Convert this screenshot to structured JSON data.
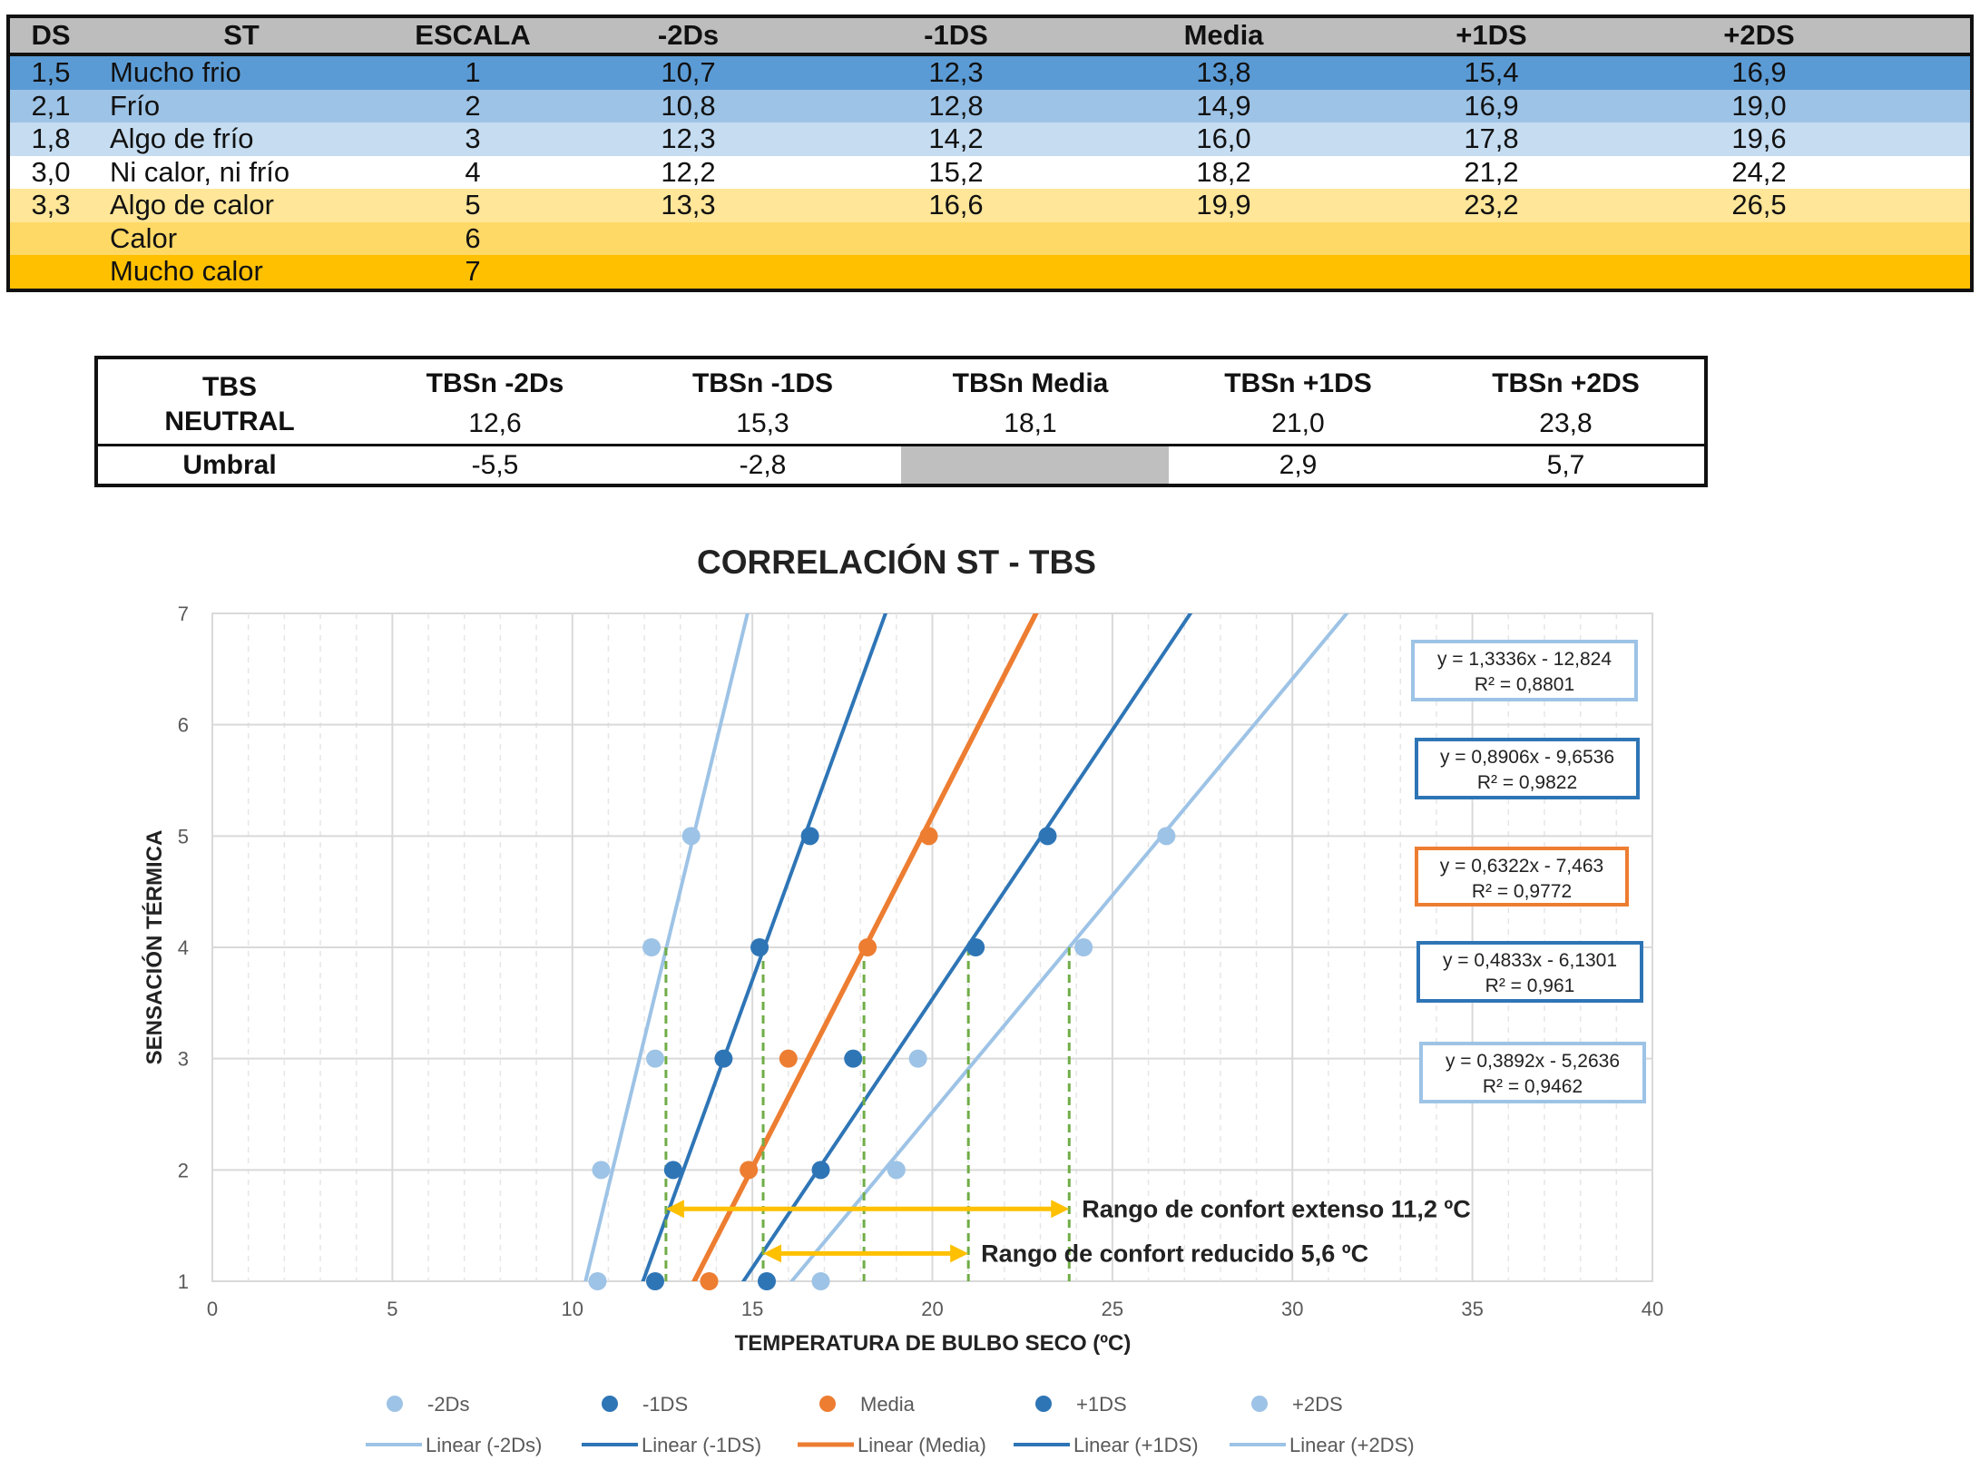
{
  "table1": {
    "headers": [
      "DS",
      "ST",
      "ESCALA",
      "-2Ds",
      "-1DS",
      "Media",
      "+1DS",
      "+2DS"
    ],
    "rows": [
      {
        "ds": "1,5",
        "st": "Mucho frio",
        "escala": "1",
        "values": [
          "10,7",
          "12,3",
          "13,8",
          "15,4",
          "16,9"
        ],
        "bg": "#5b9bd5"
      },
      {
        "ds": "2,1",
        "st": "Frío",
        "escala": "2",
        "values": [
          "10,8",
          "12,8",
          "14,9",
          "16,9",
          "19,0"
        ],
        "bg": "#9dc3e6"
      },
      {
        "ds": "1,8",
        "st": "Algo de frío",
        "escala": "3",
        "values": [
          "12,3",
          "14,2",
          "16,0",
          "17,8",
          "19,6"
        ],
        "bg": "#c5dcf1"
      },
      {
        "ds": "3,0",
        "st": "Ni calor, ni frío",
        "escala": "4",
        "values": [
          "12,2",
          "15,2",
          "18,2",
          "21,2",
          "24,2"
        ],
        "bg": "#ffffff"
      },
      {
        "ds": "3,3",
        "st": "Algo de calor",
        "escala": "5",
        "values": [
          "13,3",
          "16,6",
          "19,9",
          "23,2",
          "26,5"
        ],
        "bg": "#ffe699"
      },
      {
        "ds": "",
        "st": "Calor",
        "escala": "6",
        "values": [
          "",
          "",
          "",
          "",
          ""
        ],
        "bg": "#ffd966"
      },
      {
        "ds": "",
        "st": "Mucho calor",
        "escala": "7",
        "values": [
          "",
          "",
          "",
          "",
          ""
        ],
        "bg": "#ffc000"
      }
    ]
  },
  "table2": {
    "label_line1": "TBS",
    "label_line2": "NEUTRAL",
    "headers": [
      "TBSn -2Ds",
      "TBSn -1DS",
      "TBSn Media",
      "TBSn +1DS",
      "TBSn +2DS"
    ],
    "neutral_values": [
      "12,6",
      "15,3",
      "18,1",
      "21,0",
      "23,8"
    ],
    "umbral_label": "Umbral",
    "umbral_values": [
      "-5,5",
      "-2,8",
      "",
      "2,9",
      "5,7"
    ]
  },
  "chart_data": {
    "type": "scatter",
    "title": "CORRELACIÓN ST - TBS",
    "xlabel": "TEMPERATURA DE BULBO SECO (ºC)",
    "ylabel": "SENSACIÓN TÉRMICA",
    "xlim": [
      0,
      40
    ],
    "ylim": [
      1,
      7
    ],
    "x_ticks": [
      "0",
      "5",
      "10",
      "15",
      "20",
      "25",
      "30",
      "35",
      "40"
    ],
    "y_ticks": [
      "1",
      "2",
      "3",
      "4",
      "5",
      "6",
      "7"
    ],
    "grid": true,
    "series": [
      {
        "name": "-2Ds",
        "color": "#9dc3e6",
        "x": [
          10.7,
          10.8,
          12.3,
          12.2,
          13.3
        ],
        "y": [
          1,
          2,
          3,
          4,
          5
        ],
        "trend_label": "Linear (-2Ds)",
        "slope": 1.3336,
        "intercept": -12.824,
        "equation": "y = 1,3336x - 12,824",
        "r2": "R² = 0,8801"
      },
      {
        "name": "-1DS",
        "color": "#2e75b6",
        "x": [
          12.3,
          12.8,
          14.2,
          15.2,
          16.6
        ],
        "y": [
          1,
          2,
          3,
          4,
          5
        ],
        "trend_label": "Linear (-1DS)",
        "slope": 0.8906,
        "intercept": -9.6536,
        "equation": "y = 0,8906x - 9,6536",
        "r2": "R² = 0,9822"
      },
      {
        "name": "Media",
        "color": "#ed7d31",
        "x": [
          13.8,
          14.9,
          16.0,
          18.2,
          19.9
        ],
        "y": [
          1,
          2,
          3,
          4,
          5
        ],
        "trend_label": "Linear (Media)",
        "slope": 0.6322,
        "intercept": -7.463,
        "equation": "y = 0,6322x - 7,463",
        "r2": "R² = 0,9772"
      },
      {
        "name": "+1DS",
        "color": "#2e75b6",
        "x": [
          15.4,
          16.9,
          17.8,
          21.2,
          23.2
        ],
        "y": [
          1,
          2,
          3,
          4,
          5
        ],
        "trend_label": "Linear (+1DS)",
        "slope": 0.4833,
        "intercept": -6.1301,
        "equation": "y = 0,4833x - 6,1301",
        "r2": "R² = 0,961"
      },
      {
        "name": "+2DS",
        "color": "#9dc3e6",
        "x": [
          16.9,
          19.0,
          19.6,
          24.2,
          26.5
        ],
        "y": [
          1,
          2,
          3,
          4,
          5
        ],
        "trend_label": "Linear (+2DS)",
        "slope": 0.3892,
        "intercept": -5.2636,
        "equation": "y = 0,3892x - 5,2636",
        "r2": "R² = 0,9462"
      }
    ],
    "neutral_x": [
      12.6,
      15.3,
      18.1,
      21.0,
      23.8
    ],
    "neutral_y": 4,
    "ranges": [
      {
        "label": "Rango de confort extenso 11,2 ºC",
        "x_from": 12.6,
        "x_to": 23.8,
        "y": 1.65
      },
      {
        "label": "Rango de confort reducido 5,6 ºC",
        "x_from": 15.3,
        "x_to": 21.0,
        "y": 1.25
      }
    ],
    "colors": {
      "dash": "#70ad47",
      "arrow": "#ffc000",
      "grid": "#d9d9d9"
    }
  }
}
